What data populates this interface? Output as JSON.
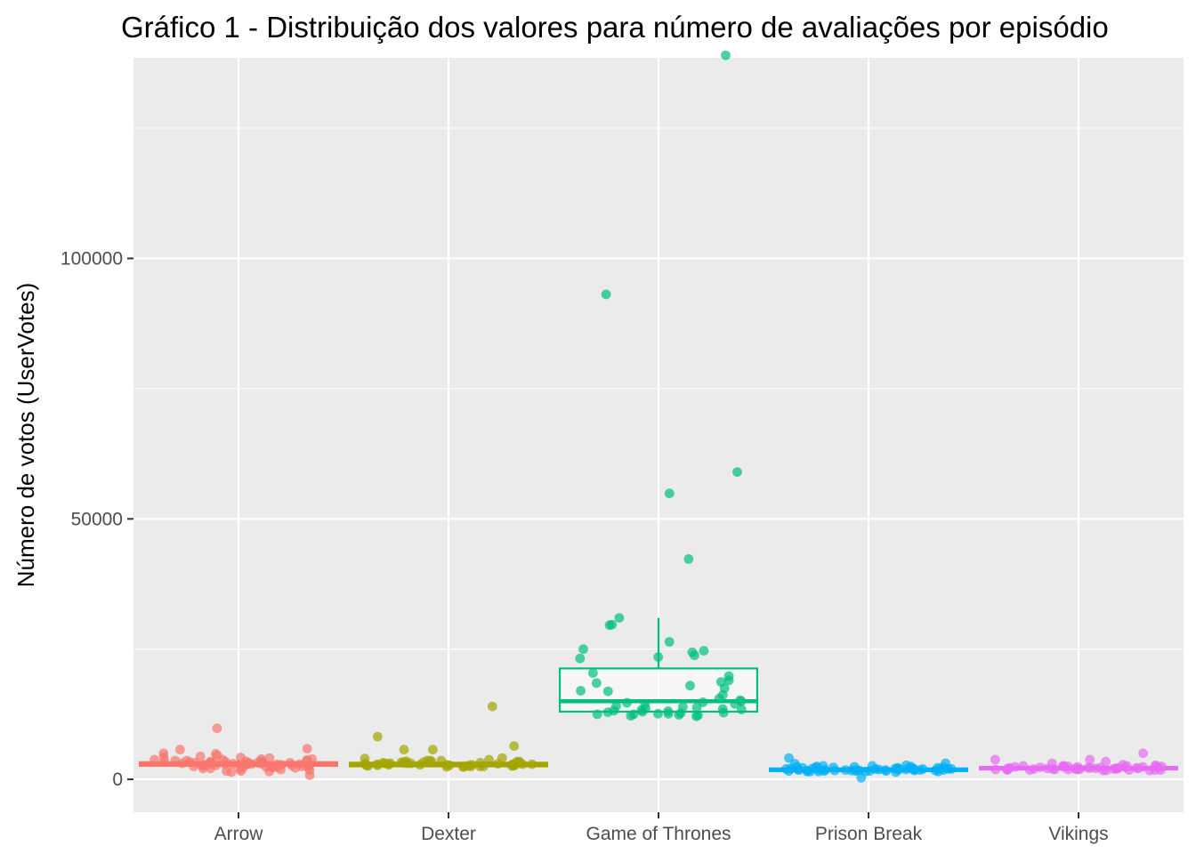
{
  "chart_data": {
    "type": "boxplot",
    "title": "Gráfico 1 - Distribuição dos valores para número de avaliações por episódio",
    "xlabel": "",
    "ylabel": "Número de votos (UserVotes)",
    "ylim": [
      -6300,
      138500
    ],
    "yticks": [
      0,
      50000,
      100000
    ],
    "ytick_labels": [
      "0",
      "50000",
      "100000"
    ],
    "grid": true,
    "legend": "none",
    "categories": [
      "Arrow",
      "Dexter",
      "Game of Thrones",
      "Prison Break",
      "Vikings"
    ],
    "colors": [
      "#F8766D",
      "#A3A500",
      "#00BF7D",
      "#00B0F6",
      "#E76BF3"
    ],
    "boxes": [
      {
        "q1": 2600,
        "median": 2900,
        "q3": 3300,
        "whisker_low": 2300,
        "whisker_high": 3800
      },
      {
        "q1": 2500,
        "median": 2800,
        "q3": 3200,
        "whisker_low": 2300,
        "whisker_high": 3500
      },
      {
        "q1": 13000,
        "median": 15000,
        "q3": 21300,
        "whisker_low": 13000,
        "whisker_high": 31000
      },
      {
        "q1": 1600,
        "median": 1800,
        "q3": 2100,
        "whisker_low": 1500,
        "whisker_high": 2400
      },
      {
        "q1": 1900,
        "median": 2100,
        "q3": 2400,
        "whisker_low": 1700,
        "whisker_high": 2800
      }
    ],
    "points": [
      [
        3800,
        2600,
        2100,
        3300,
        2900,
        2400,
        3100,
        1900,
        2800,
        3500,
        4100,
        3900,
        2700,
        3200,
        4600,
        2500,
        2300,
        5000,
        1500,
        3000,
        2800,
        3200,
        3600,
        4200,
        1800,
        2600,
        3300,
        2900,
        2400,
        3700,
        9800,
        3100,
        2200,
        3400,
        5700,
        2700,
        1600,
        2800,
        3900,
        3000,
        2300,
        2500,
        3500,
        4400,
        3200,
        2000,
        2900,
        3600,
        5900,
        4300,
        2700,
        3300,
        2400,
        800,
        1600,
        3100,
        3800,
        2600,
        4900,
        3400,
        2100,
        2800,
        3200,
        2500,
        3600,
        1400,
        2900,
        3500,
        3000,
        2400
      ],
      [
        2700,
        3200,
        2900,
        3500,
        2500,
        3100,
        2400,
        3300,
        2800,
        3600,
        3000,
        2600,
        3200,
        4100,
        2700,
        5700,
        3100,
        8200,
        2900,
        3300,
        2500,
        2800,
        3600,
        2400,
        3000,
        3200,
        2800,
        6400,
        2600,
        3400,
        14000,
        3100,
        2700,
        3500,
        2900,
        4000,
        2600,
        3200,
        3800,
        2800,
        2500,
        3300,
        2900,
        5700,
        3600,
        2700,
        3100,
        2400,
        3000,
        3200,
        2800,
        3400,
        2600
      ],
      [
        139000,
        93100,
        59000,
        54900,
        42300,
        31000,
        29700,
        29600,
        26400,
        25000,
        24700,
        24400,
        23800,
        23500,
        23200,
        20400,
        19000,
        18500,
        18000,
        17500,
        17000,
        16200,
        15500,
        15000,
        14500,
        14800,
        14400,
        14100,
        13800,
        13500,
        13300,
        13200,
        13000,
        12800,
        12600,
        12500,
        12400,
        12300,
        12200,
        12100,
        13600,
        12900,
        14700,
        15200,
        13400,
        12700,
        18700,
        19800,
        16900,
        13900,
        12500,
        12600,
        13100
      ],
      [
        2000,
        1800,
        1500,
        2300,
        1700,
        2100,
        1400,
        2600,
        1900,
        1600,
        2200,
        1800,
        2500,
        4100,
        1700,
        2000,
        1500,
        1900,
        2300,
        1600,
        2100,
        1800,
        2400,
        1700,
        2000,
        1500,
        2200,
        1900,
        3100,
        1600,
        2000,
        1800,
        2700,
        1700,
        2100,
        1500,
        1900,
        2200,
        1800,
        2000,
        1600,
        2300,
        2500,
        1700,
        1900,
        2100,
        1800,
        300,
        2000,
        1600,
        2200,
        1900,
        1700,
        2400,
        3000,
        2600,
        1800,
        2000,
        1500,
        2100
      ],
      [
        2000,
        2400,
        1800,
        2100,
        2600,
        1900,
        2300,
        1700,
        2200,
        2000,
        2500,
        1800,
        2400,
        2100,
        3800,
        1900,
        2600,
        2200,
        2000,
        1700,
        2300,
        2800,
        1900,
        2100,
        2500,
        1800,
        3400,
        2200,
        2000,
        2600,
        1900,
        2400,
        3800,
        2100,
        1700,
        2300,
        2000,
        5000,
        2200,
        1800,
        2500,
        2000,
        2700,
        2300,
        1900,
        2100,
        3100,
        2400,
        2000,
        2200,
        1800,
        2600
      ]
    ]
  }
}
